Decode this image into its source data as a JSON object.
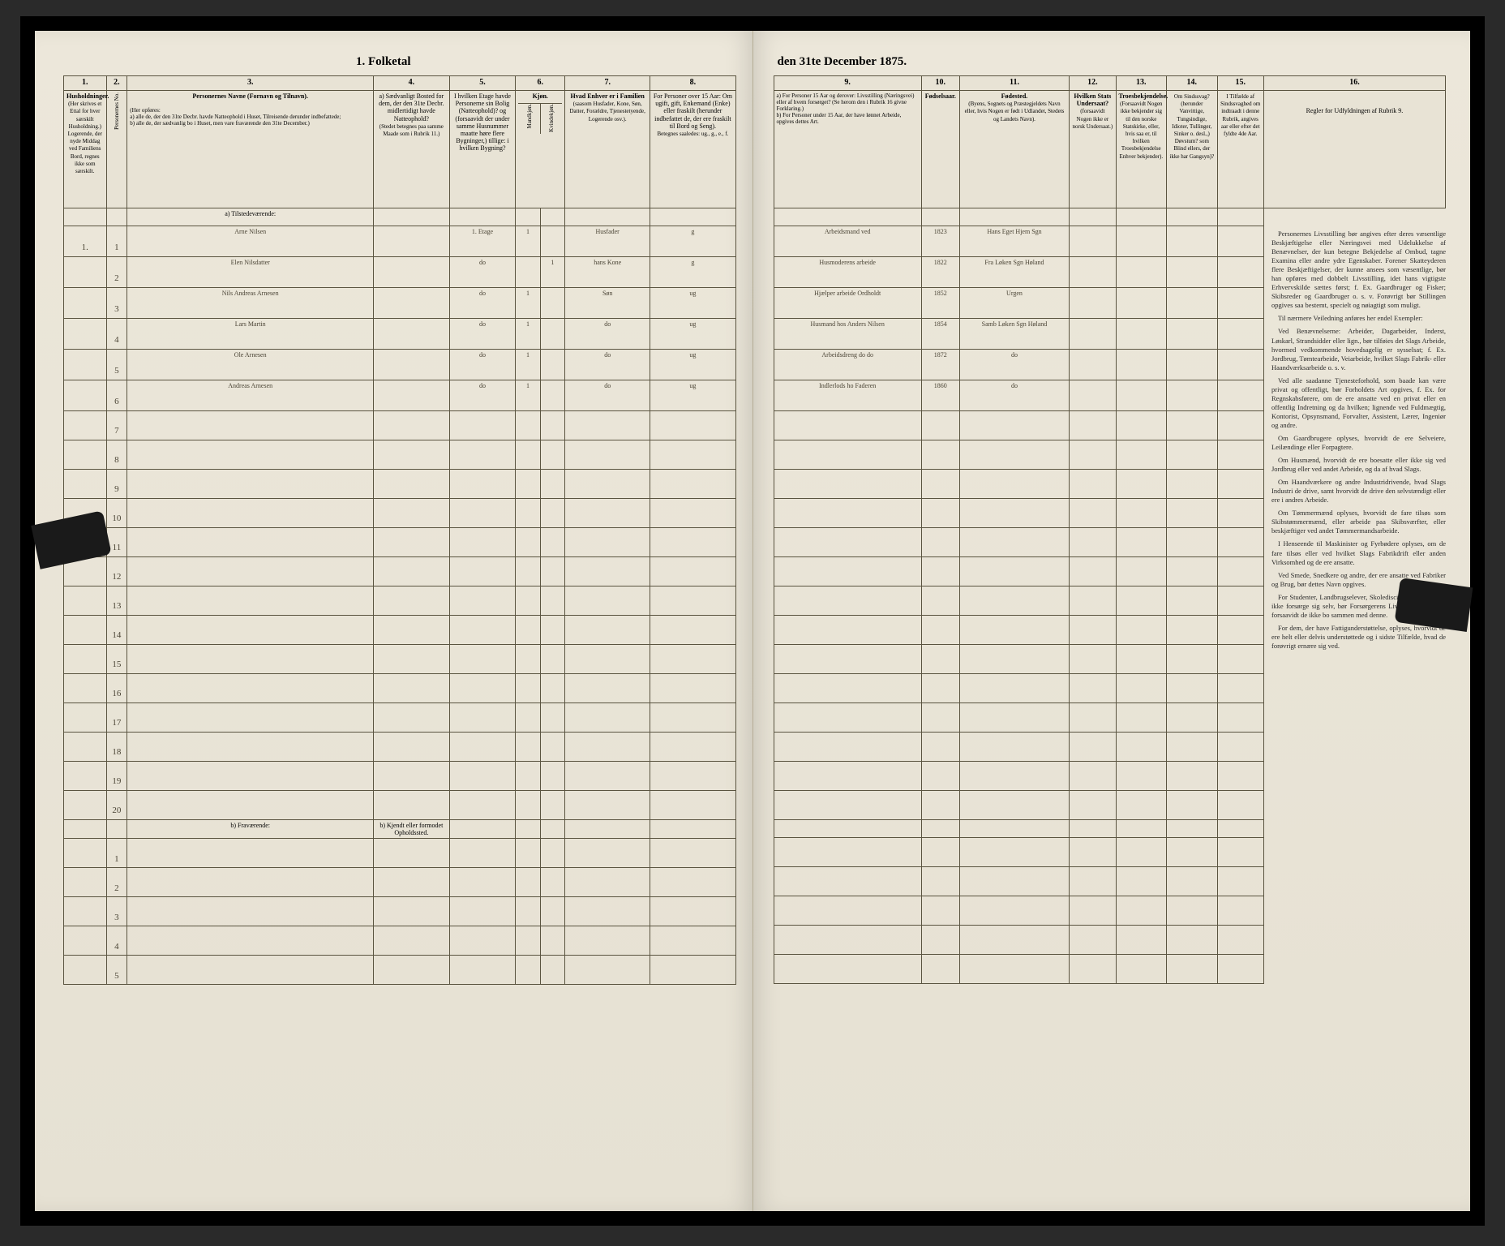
{
  "title_left": "1. Folketal",
  "title_right": "den 31te December 1875.",
  "column_numbers": [
    "1.",
    "2.",
    "3.",
    "4.",
    "5.",
    "6.",
    "7.",
    "8.",
    "9.",
    "10.",
    "11.",
    "12.",
    "13.",
    "14.",
    "15.",
    "16."
  ],
  "headers": {
    "c1": "Husholdninger.",
    "c1_sub": "(Her skrives et Ettal for hver særskilt Husholdning.)",
    "c1_note": "Logerende, der nyde Middag ved Familiens Bord, regnes ikke som særskilt.",
    "c2": "Personernes No.",
    "c3": "Personernes Navne (Fornavn og Tilnavn).",
    "c3_sub": "(Her opføres:\na) alle de, der den 31te Decbr. havde Natteophold i Huset, Tilreisende derunder indbefattede;\nb) alle de, der sædvanlig bo i Huset, men vare fraværende den 31te December.)",
    "c4": "a) Sædvanligt Bosted for dem, der den 31te Decbr. midlertidigt havde Natteophold?",
    "c4_sub": "(Stedet betegnes paa samme Maade som i Rubrik 11.)",
    "c5": "I hvilken Etage havde Personerne sin Bolig (Natteophold)? og (forsaavidt der under samme Husnummer maatte høre flere Bygninger,) tillige: i hvilken Bygning?",
    "c6": "Kjøn.",
    "c6a": "Mandkjøn.",
    "c6b": "Kvindekjøn.",
    "c7": "Hvad Enhver er i Familien",
    "c7_sub": "(saasom Husfader, Kone, Søn, Datter, Forældre, Tjenestetyende, Logerende osv.).",
    "c8": "For Personer over 15 Aar: Om ugift, gift, Enkemand (Enke) eller fraskilt (herunder indbefattet de, der ere fraskilt til Bord og Seng).",
    "c8_sub": "Betegnes saaledes: ug., g., e., f.",
    "c9": "a) For Personer 15 Aar og derover: Livsstilling (Næringsvei) eller af hvem forsørget? (Se herom den i Rubrik 16 givne Forklaring.)\nb) For Personer under 15 Aar, der have lønnet Arbeide, opgives dettes Art.",
    "c10": "Fødselsaar.",
    "c11": "Fødested.",
    "c11_sub": "(Byens, Sognets og Præstegjeldets Navn eller, hvis Nogen er født i Udlandet, Stedets og Landets Navn).",
    "c12": "Hvilken Stats Undersaat?",
    "c12_sub": "(forsaavidt Nogen ikke er norsk Undersaat.)",
    "c13": "Troesbekjendelse.",
    "c13_sub": "(Forsaavidt Nogen ikke bekjender sig til den norske Statskirke, eller, hvis saa er, til hvilken Troesbekjendelse Enhver bekjender).",
    "c14": "Om Sindssvag? (herunder Vanvittige, Tungsindige, Idioter, Tullinger, Sinker o. desl.,) Døvstum? som Blind ellers, der ikke har Gangsyn)?",
    "c15": "I Tilfælde af Sindssvaghed om indtraadt i denne Rubrik, angives aar eller efter det fyldte 4de Aar.",
    "c16": "Regler for Udfyldningen af Rubrik 9."
  },
  "section_a": "a) Tilstedeværende:",
  "section_b": "b) Fraværende:",
  "section_b_note": "b) Kjendt eller formodet Opholdssted.",
  "rows": [
    {
      "n": "1",
      "name": "Arne Nilsen",
      "c4": "",
      "c5": "1. Etage",
      "c6a": "1",
      "c7": "Husfader",
      "c8": "g",
      "c9": "Arbeidsmand ved",
      "c10": "1823",
      "c11": "Hans Eget Hjem Sgn"
    },
    {
      "n": "2",
      "name": "Elen Nilsdatter",
      "c5": "do",
      "c6b": "1",
      "c7": "hans Kone",
      "c8": "g",
      "c9": "Husmoderens arbeide",
      "c10": "1822",
      "c11": "Fra Løken Sgn Høland"
    },
    {
      "n": "3",
      "name": "Nils Andreas Arnesen",
      "c5": "do",
      "c6a": "1",
      "c7": "Søn",
      "c8": "ug",
      "c9": "Hjælper arbeide Ordholdt",
      "c10": "1852",
      "c11": "Urgen"
    },
    {
      "n": "4",
      "name": "Lars Martin",
      "c5": "do",
      "c6a": "1",
      "c7": "do",
      "c8": "ug",
      "c9": "Husmand hos Anders Nilsen",
      "c10": "1854",
      "c11": "Samb Løken Sgn Høland"
    },
    {
      "n": "5",
      "name": "Ole Arnesen",
      "c5": "do",
      "c6a": "1",
      "c7": "do",
      "c8": "ug",
      "c9": "Arbeidsdreng do do",
      "c10": "1872",
      "c11": "do"
    },
    {
      "n": "6",
      "name": "Andreas Arnesen",
      "c5": "do",
      "c6a": "1",
      "c7": "do",
      "c8": "ug",
      "c9": "Indlerlods ho Faderen",
      "c10": "1860",
      "c11": "do"
    }
  ],
  "empty_rows_a": [
    "7",
    "8",
    "9",
    "10",
    "11",
    "12",
    "13",
    "14",
    "15",
    "16",
    "17",
    "18",
    "19",
    "20"
  ],
  "empty_rows_b": [
    "1",
    "2",
    "3",
    "4",
    "5"
  ],
  "rules_text": [
    "Personernes Livsstilling bør angives efter deres væsentlige Beskjæftigelse eller Næringsvei med Udelukkelse af Benævnelser, der kun betegne Bekjedelse af Ombud, tagne Examina eller andre ydre Egenskaber. Forener Skatteyderen flere Beskjæftigelser, der kunne ansees som væsentlige, bør han opføres med dobbelt Livsstilling, idet hans vigtigste Erhvervskilde sættes først; f. Ex. Gaardbruger og Fisker; Skibsreder og Gaardbruger o. s. v. Forøvrigt bør Stillingen opgives saa bestemt, specielt og nøiagtigt som muligt.",
    "Til nærmere Veiledning anføres her endel Exempler:",
    "Ved Benævnelserne: Arbeider, Dagarbeider, Inderst, Løskarl, Strandsidder eller lign., bør tilføies det Slags Arbeide, hvormed vedkommende hovedsagelig er sysselsat; f. Ex. Jordbrug, Tømtearbeide, Veiarbeide, hvilket Slags Fabrik- eller Haandværksarbeide o. s. v.",
    "Ved alle saadanne Tjenesteforhold, som baade kan være privat og offentligt, bør Forholdets Art opgives, f. Ex. for Regnskabsførere, om de ere ansatte ved en privat eller en offentlig Indretning og da hvilken; lignende ved Fuldmægtig, Kontorist, Opsynsmand, Forvalter, Assistent, Lærer, Ingeniør og andre.",
    "Om Gaardbrugere oplyses, hvorvidt de ere Selveiere, Leilændinge eller Forpagtere.",
    "Om Husmænd, hvorvidt de ere boesatte eller ikke sig ved Jordbrug eller ved andet Arbeide, og da af hvad Slags.",
    "Om Haandværkere og andre Industridrivende, hvad Slags Industri de drive, samt hvorvidt de drive den selvstændigt eller ere i andres Arbeide.",
    "Om Tømmermænd oplyses, hvorvidt de fare tilsøs som Skibstømmermænd, eller arbeide paa Skibsværfter, eller beskjæftiger ved andet Tømmermandsarbeide.",
    "I Henseende til Maskinister og Fyrbødere oplyses, om de fare tilsøs eller ved hvilket Slags Fabrikdrift eller anden Virksomhed og de ere ansatte.",
    "Ved Smede, Snedkere og andre, der ere ansatte ved Fabriker og Brug, bør dettes Navn opgives.",
    "For Studenter, Landbrugselever, Skoledisciple og andre, der ikke forsørge sig selv, bør Forsørgerens Livsstilling opgives, forsaavidt de ikke bo sammen med denne.",
    "For dem, der have Fattigunderstøttelse, oplyses, hvorvidt de ere helt eller delvis understøttede og i sidste Tilfælde, hvad de forøvrigt ernære sig ved."
  ]
}
